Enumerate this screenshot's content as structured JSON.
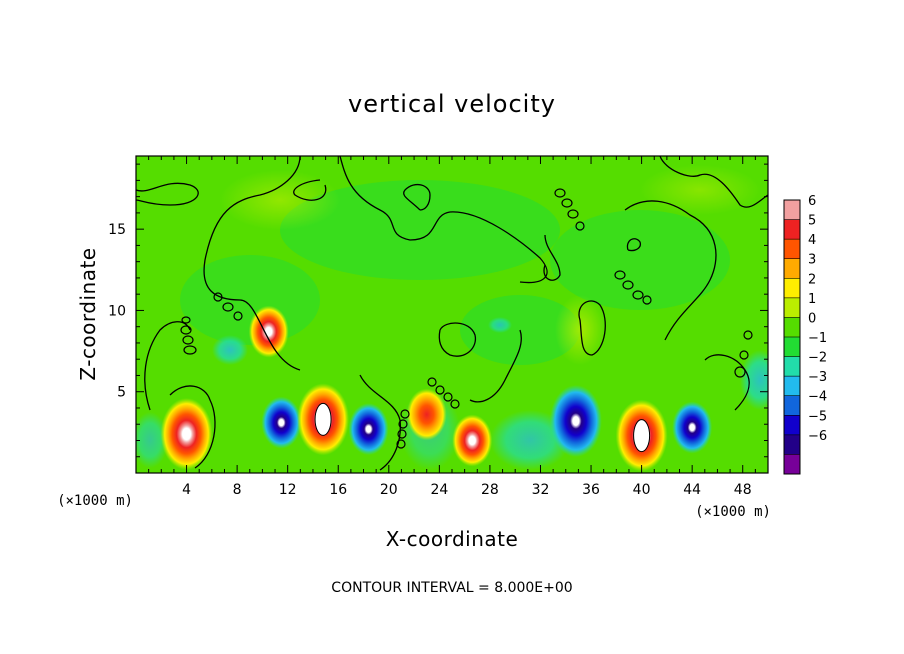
{
  "chart_data": {
    "type": "heatmap",
    "title": "vertical velocity",
    "xlabel": "X-coordinate",
    "ylabel": "Z-coordinate",
    "x_unit_label": "(×1000 m)",
    "x_unit_label_right": "(×1000 m)",
    "footnote": "CONTOUR INTERVAL = 8.000E+00",
    "xlim": [
      0,
      50
    ],
    "ylim": [
      0,
      19.5
    ],
    "xticks": [
      4,
      8,
      12,
      16,
      20,
      24,
      28,
      32,
      36,
      40,
      44,
      48
    ],
    "yticks": [
      5,
      10,
      15
    ],
    "colorbar": {
      "levels": [
        6,
        5,
        4,
        3,
        2,
        1,
        0,
        -1,
        -2,
        -3,
        -4,
        -5,
        -6
      ],
      "colors": [
        "#f2a0a0",
        "#ee2222",
        "#ff5500",
        "#ffaa00",
        "#ffee00",
        "#bbee00",
        "#55dd00",
        "#22dd33",
        "#22ddaa",
        "#22bbee",
        "#1166dd",
        "#1100cc",
        "#220088",
        "#770099"
      ]
    },
    "features": [
      {
        "sign": "up",
        "x": 4.0,
        "z": 2.4,
        "peak": 6
      },
      {
        "sign": "up",
        "x": 10.5,
        "z": 8.7,
        "peak": 5
      },
      {
        "sign": "down",
        "x": 11.5,
        "z": 3.1,
        "peak": -5
      },
      {
        "sign": "up",
        "x": 14.8,
        "z": 3.3,
        "peak": 7
      },
      {
        "sign": "down",
        "x": 18.4,
        "z": 2.7,
        "peak": -5
      },
      {
        "sign": "up",
        "x": 23.0,
        "z": 3.6,
        "peak": 3
      },
      {
        "sign": "up",
        "x": 26.6,
        "z": 2.0,
        "peak": 5
      },
      {
        "sign": "down",
        "x": 34.8,
        "z": 3.2,
        "peak": -6
      },
      {
        "sign": "up",
        "x": 40.0,
        "z": 2.3,
        "peak": 7
      },
      {
        "sign": "down",
        "x": 44.0,
        "z": 2.8,
        "peak": -5
      }
    ]
  }
}
